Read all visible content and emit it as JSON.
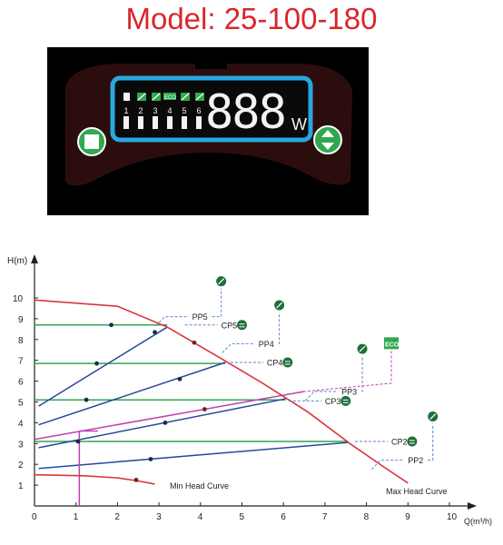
{
  "title": "Model: 25-100-180",
  "control_panel": {
    "mode_numbers": [
      "1",
      "2",
      "3",
      "4",
      "5",
      "6"
    ],
    "eco_label": "ECO",
    "display_digits": "888",
    "display_unit": "W",
    "left_button_icon": "stop-square-icon",
    "right_button_icon": "up-down-arrows-icon",
    "colors": {
      "body": "#2c0d0d",
      "screen_border": "#29a7df",
      "button": "#2fa84f",
      "background": "#000000"
    }
  },
  "chart_data": {
    "type": "line",
    "xlabel": "Q(m³/h)",
    "ylabel": "H(m)",
    "xlim": [
      0,
      10
    ],
    "ylim": [
      0,
      10
    ],
    "x_ticks": [
      "0",
      "1",
      "2",
      "3",
      "4",
      "5",
      "6",
      "7",
      "8",
      "9",
      "10"
    ],
    "y_ticks": [
      "1",
      "2",
      "3",
      "4",
      "5",
      "6",
      "7",
      "8",
      "9",
      "10"
    ],
    "curves": [
      {
        "name": "Max Head Curve",
        "color": "#d9363e",
        "points": [
          [
            0,
            9.9
          ],
          [
            2,
            9.6
          ],
          [
            3.2,
            8.6
          ],
          [
            4.4,
            7.2
          ],
          [
            5.5,
            5.9
          ],
          [
            6.6,
            4.5
          ],
          [
            7.6,
            3
          ],
          [
            8.4,
            1.9
          ],
          [
            9,
            1.1
          ]
        ]
      },
      {
        "name": "Min Head Curve",
        "color": "#d9363e",
        "points": [
          [
            0,
            1.5
          ],
          [
            1.2,
            1.45
          ],
          [
            2,
            1.35
          ],
          [
            2.5,
            1.2
          ],
          [
            2.9,
            1.05
          ]
        ]
      }
    ],
    "constant_pressure": [
      {
        "name": "CP5",
        "y": 8.7,
        "x_end": 3.2
      },
      {
        "name": "CP4",
        "y": 6.85,
        "x_end": 4.6
      },
      {
        "name": "CP3",
        "y": 5.1,
        "x_end": 6.05
      },
      {
        "name": "CP2",
        "y": 3.1,
        "x_end": 7.55
      }
    ],
    "proportional_pressure": [
      {
        "name": "PP5",
        "points": [
          [
            0.1,
            4.8
          ],
          [
            3.2,
            8.6
          ]
        ]
      },
      {
        "name": "PP4",
        "points": [
          [
            0.1,
            3.9
          ],
          [
            4.6,
            6.9
          ]
        ]
      },
      {
        "name": "PP3",
        "points": [
          [
            0.1,
            2.8
          ],
          [
            6.05,
            5.15
          ]
        ]
      },
      {
        "name": "PP2",
        "points": [
          [
            0.1,
            1.8
          ],
          [
            7.55,
            3.05
          ]
        ]
      }
    ],
    "auto_curve": {
      "name": "ECO",
      "color": "#c040b4",
      "points": [
        [
          0,
          3.2
        ],
        [
          6.5,
          5.5
        ]
      ]
    },
    "auto_vertical_x": 1.08,
    "auto_vertical_top": 3.6,
    "marker_points": [
      {
        "curve": "CP5",
        "x": 1.85,
        "y": 8.7
      },
      {
        "curve": "CP4",
        "x": 1.5,
        "y": 6.85
      },
      {
        "curve": "CP3",
        "x": 1.25,
        "y": 5.1
      },
      {
        "curve": "CP2",
        "x": 1.05,
        "y": 3.1
      },
      {
        "curve": "PP5",
        "x": 2.9,
        "y": 8.35
      },
      {
        "curve": "PP4",
        "x": 3.5,
        "y": 6.1
      },
      {
        "curve": "PP3",
        "x": 3.15,
        "y": 4.0
      },
      {
        "curve": "PP2",
        "x": 2.8,
        "y": 2.25
      },
      {
        "curve": "Max",
        "x": 3.85,
        "y": 7.85
      },
      {
        "curve": "Auto",
        "x": 4.1,
        "y": 4.65
      },
      {
        "curve": "Min",
        "x": 2.45,
        "y": 1.25
      }
    ],
    "annotations": [
      {
        "text": "PP5",
        "x": 3.8,
        "y": 9.1,
        "icon": "pp-icon",
        "icon_x": 4.5,
        "icon_y": 10.8
      },
      {
        "text": "CP5",
        "x": 4.5,
        "y": 8.7,
        "icon": "cp-icon",
        "icon_x": 5.0,
        "icon_y": 8.7
      },
      {
        "text": "PP4",
        "x": 5.4,
        "y": 7.8,
        "icon": "pp-icon",
        "icon_x": 5.9,
        "icon_y": 9.65
      },
      {
        "text": "CP4",
        "x": 5.6,
        "y": 6.9,
        "icon": "cp-icon",
        "icon_x": 6.1,
        "icon_y": 6.9
      },
      {
        "text": "PP3",
        "x": 7.4,
        "y": 5.5,
        "icon": "pp-icon",
        "icon_x": 7.9,
        "icon_y": 7.55
      },
      {
        "text": "CP3",
        "x": 7.0,
        "y": 5.05,
        "icon": "cp-icon",
        "icon_x": 7.5,
        "icon_y": 5.05
      },
      {
        "text": "PP2",
        "x": 9.0,
        "y": 2.2,
        "icon": "pp-icon",
        "icon_x": 9.6,
        "icon_y": 4.3
      },
      {
        "text": "CP2",
        "x": 8.6,
        "y": 3.1,
        "icon": "cp-icon",
        "icon_x": 9.1,
        "icon_y": 3.1
      }
    ],
    "eco_badge": {
      "text": "ECO",
      "x": 8.6,
      "y": 7.8
    },
    "label_min": "Min Head Curve",
    "label_max": "Max Head Curve",
    "colors": {
      "cp": "#2fa84f",
      "pp": "#27489a",
      "max": "#d9363e",
      "auto": "#c040b4",
      "dash": "#5b86c8"
    }
  }
}
